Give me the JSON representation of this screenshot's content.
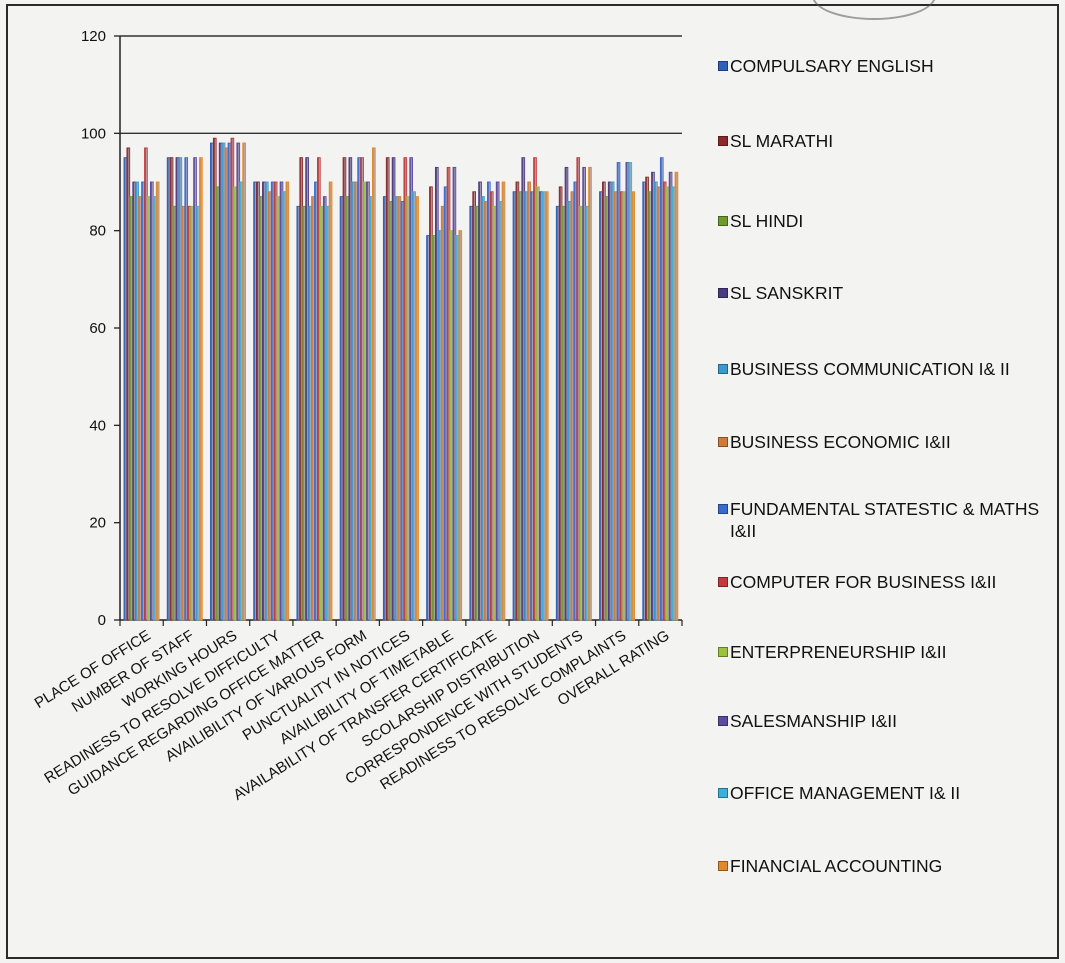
{
  "chart_data": {
    "type": "bar",
    "ylim": [
      0,
      120
    ],
    "yticks": [
      0,
      20,
      40,
      60,
      80,
      100,
      120
    ],
    "grid": false,
    "legend_position": "right",
    "categories": [
      "PLACE OF OFFICE",
      "NUMBER OF STAFF",
      "WORKING HOURS",
      "READINESS TO RESOLVE DIFFICULTY",
      "GUIDANCE REGARDING OFFICE MATTER",
      "AVAILIBILITY OF VARIOUS FORM",
      "PUNCTUALITY IN NOTICES",
      "AVAILIBILITY OF TIMETABLE",
      "AVAILABILITY OF TRANSFER CERTIFICATE",
      "SCOLARSHIP DISTRIBUTION",
      "CORRESPONDENCE WITH STUDENTS",
      "READINESS TO RESOLVE COMPLAINTS",
      "OVERALL RATING"
    ],
    "series": [
      {
        "name": "COMPULSARY ENGLISH",
        "color": "#2f5fb8",
        "values": [
          95,
          95,
          98,
          90,
          85,
          87,
          87,
          79,
          85,
          88,
          85,
          88,
          90
        ]
      },
      {
        "name": "SL MARATHI",
        "color": "#8b2a2a",
        "values": [
          97,
          95,
          99,
          90,
          95,
          95,
          95,
          89,
          88,
          90,
          89,
          90,
          91
        ]
      },
      {
        "name": "SL HINDI",
        "color": "#6e9a2e",
        "values": [
          87,
          85,
          89,
          87,
          85,
          87,
          86,
          79,
          85,
          88,
          85,
          87,
          88
        ]
      },
      {
        "name": "SL SANSKRIT",
        "color": "#4a3a80",
        "values": [
          90,
          95,
          98,
          90,
          95,
          95,
          95,
          93,
          90,
          95,
          93,
          90,
          92
        ]
      },
      {
        "name": "BUSINESS COMMUNICATION I& II",
        "color": "#3a9ad0",
        "values": [
          90,
          95,
          98,
          90,
          85,
          90,
          87,
          80,
          87,
          88,
          86,
          90,
          90
        ]
      },
      {
        "name": "BUSINESS ECONOMIC I&II",
        "color": "#d07a3a",
        "values": [
          87,
          85,
          97,
          88,
          87,
          90,
          87,
          85,
          86,
          90,
          88,
          88,
          89
        ]
      },
      {
        "name": "FUNDAMENTAL STATESTIC & MATHS I&II",
        "color": "#3a6ad0",
        "values": [
          90,
          95,
          98,
          90,
          90,
          95,
          86,
          89,
          90,
          88,
          90,
          94,
          95
        ]
      },
      {
        "name": "COMPUTER FOR BUSINESS I&II",
        "color": "#c23a3a",
        "values": [
          97,
          85,
          99,
          90,
          95,
          95,
          95,
          93,
          88,
          95,
          95,
          88,
          90
        ]
      },
      {
        "name": "ENTERPRENEURSHIP I&II",
        "color": "#9ac23a",
        "values": [
          87,
          85,
          89,
          87,
          85,
          90,
          87,
          80,
          85,
          89,
          85,
          88,
          89
        ]
      },
      {
        "name": "SALESMANSHIP I&II",
        "color": "#5a4aa0",
        "values": [
          90,
          95,
          98,
          90,
          87,
          90,
          95,
          93,
          90,
          88,
          93,
          94,
          92
        ]
      },
      {
        "name": "OFFICE MANAGEMENT I& II",
        "color": "#3ab0d8",
        "values": [
          87,
          85,
          90,
          88,
          85,
          87,
          88,
          79,
          86,
          88,
          85,
          94,
          89
        ]
      },
      {
        "name": "FINANCIAL ACCOUNTING",
        "color": "#e08a2a",
        "values": [
          90,
          95,
          98,
          90,
          90,
          97,
          87,
          80,
          90,
          88,
          93,
          88,
          92
        ]
      }
    ]
  }
}
